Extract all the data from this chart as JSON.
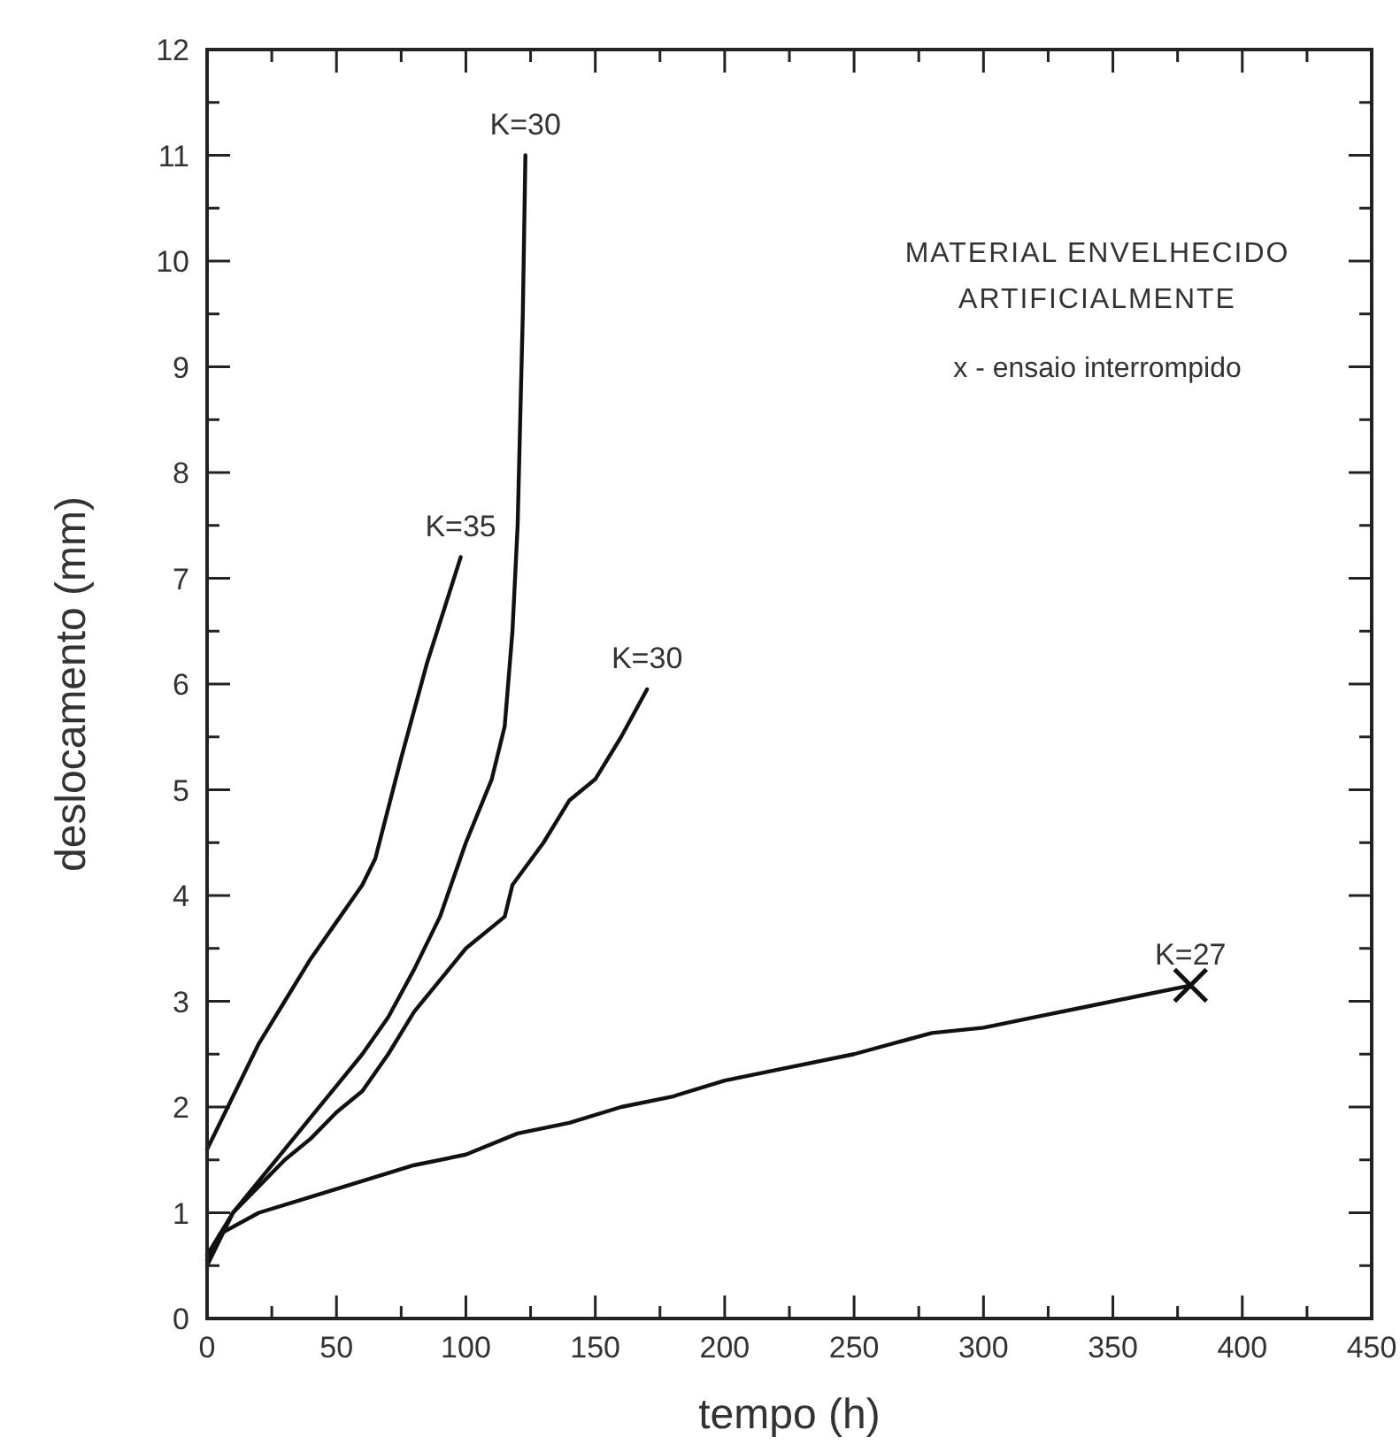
{
  "chart_data": {
    "type": "line",
    "xlabel": "tempo (h)",
    "ylabel": "deslocamento (mm)",
    "xlim": [
      0,
      450
    ],
    "ylim": [
      0,
      12
    ],
    "xticks": [
      0,
      {
        "value": 25,
        "label": null
      },
      50,
      {
        "value": 75,
        "label": null
      },
      100,
      {
        "value": 125,
        "label": null
      },
      150,
      {
        "value": 175,
        "label": null
      },
      200,
      {
        "value": 225,
        "label": null
      },
      250,
      {
        "value": 275,
        "label": null
      },
      300,
      {
        "value": 325,
        "label": null
      },
      350,
      {
        "value": 375,
        "label": null
      },
      400,
      {
        "value": 425,
        "label": null
      },
      450
    ],
    "yticks": [
      0,
      {
        "value": 0.5,
        "label": null
      },
      1,
      {
        "value": 1.5,
        "label": null
      },
      2,
      {
        "value": 2.5,
        "label": null
      },
      3,
      {
        "value": 3.5,
        "label": null
      },
      4,
      {
        "value": 4.5,
        "label": null
      },
      5,
      {
        "value": 5.5,
        "label": null
      },
      6,
      {
        "value": 6.5,
        "label": null
      },
      7,
      {
        "value": 7.5,
        "label": null
      },
      8,
      {
        "value": 8.5,
        "label": null
      },
      9,
      {
        "value": 9.5,
        "label": null
      },
      10,
      {
        "value": 10.5,
        "label": null
      },
      11,
      {
        "value": 11.5,
        "label": null
      },
      12
    ],
    "grid": false,
    "marker": "none",
    "line_style": "solid",
    "annotations": [
      "MATERIAL ENVELHECIDO",
      "ARTIFICIALMENTE",
      "x - ensaio interrompido"
    ],
    "series": [
      {
        "name": "K=35",
        "color": "#111111",
        "x": [
          0,
          10,
          20,
          30,
          40,
          50,
          60,
          65,
          75,
          85,
          98
        ],
        "values": [
          1.6,
          2.1,
          2.6,
          3.0,
          3.4,
          3.75,
          4.1,
          4.35,
          5.3,
          6.2,
          7.2
        ]
      },
      {
        "name": "K=30",
        "color": "#111111",
        "x": [
          0,
          10,
          20,
          30,
          40,
          50,
          60,
          70,
          80,
          90,
          100,
          110,
          115,
          118,
          120,
          121,
          122,
          123
        ],
        "values": [
          0.6,
          1.0,
          1.3,
          1.6,
          1.9,
          2.2,
          2.5,
          2.85,
          3.3,
          3.8,
          4.5,
          5.1,
          5.6,
          6.5,
          7.5,
          8.5,
          9.5,
          11.0
        ]
      },
      {
        "name": "K=30",
        "color": "#111111",
        "x": [
          0,
          10,
          20,
          30,
          40,
          50,
          60,
          70,
          80,
          90,
          100,
          110,
          115,
          118,
          130,
          140,
          150,
          160,
          170
        ],
        "values": [
          0.5,
          1.0,
          1.25,
          1.5,
          1.7,
          1.95,
          2.15,
          2.5,
          2.9,
          3.2,
          3.5,
          3.7,
          3.8,
          4.1,
          4.5,
          4.9,
          5.1,
          5.5,
          5.95
        ]
      },
      {
        "name": "K=27",
        "color": "#111111",
        "x": [
          0,
          5,
          20,
          40,
          60,
          80,
          100,
          120,
          140,
          160,
          180,
          200,
          220,
          250,
          280,
          300,
          320,
          340,
          360,
          380
        ],
        "values": [
          0.55,
          0.8,
          1.0,
          1.15,
          1.3,
          1.45,
          1.55,
          1.75,
          1.85,
          2.0,
          2.1,
          2.25,
          2.35,
          2.5,
          2.7,
          2.75,
          2.85,
          2.95,
          3.05,
          3.15
        ]
      },
      {
        "type": "scatter",
        "marker": "cross",
        "color": "#111111",
        "x": [
          380
        ],
        "values": [
          3.15
        ]
      }
    ]
  }
}
